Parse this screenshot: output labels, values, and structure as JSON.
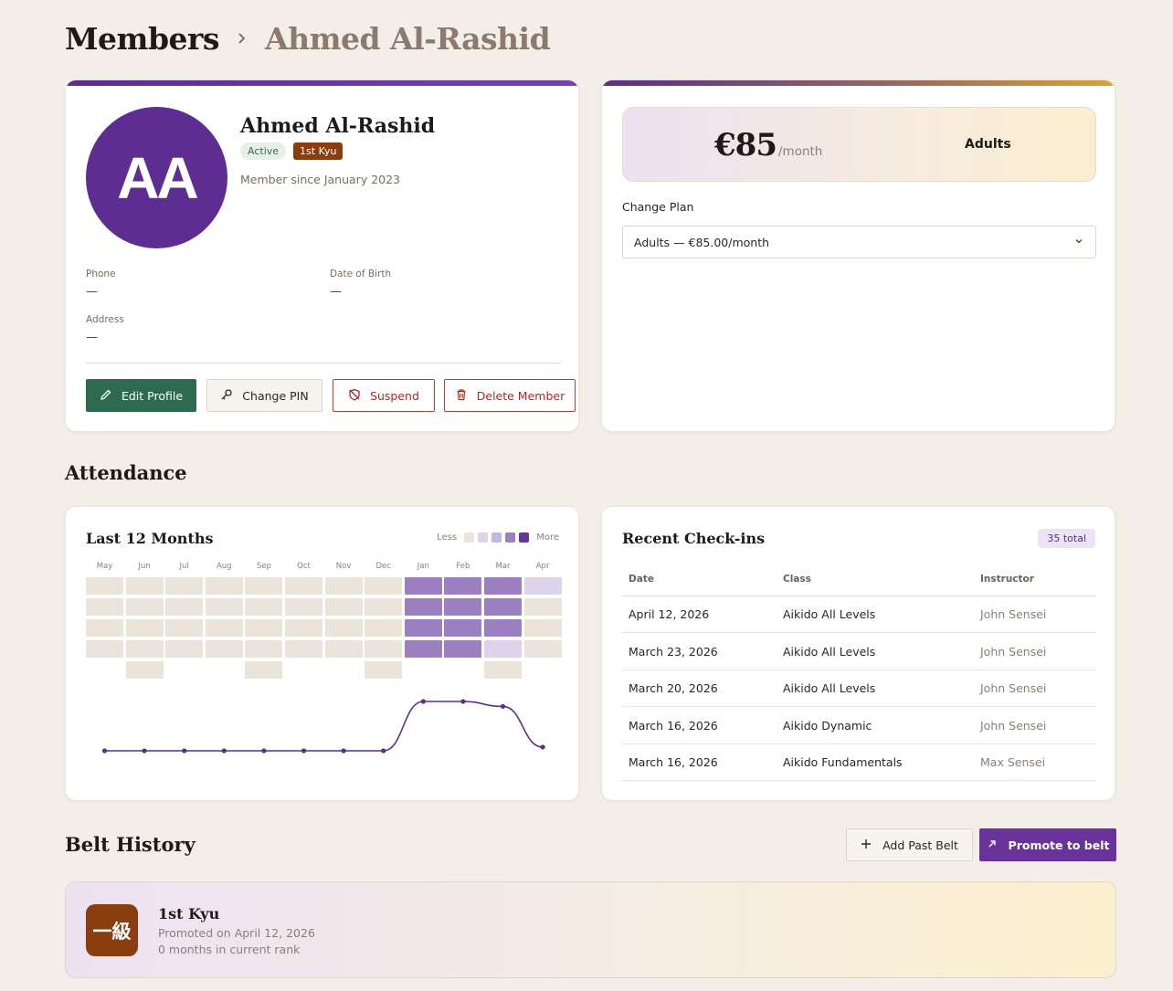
{
  "breadcrumb": {
    "root": "Members",
    "current": "Ahmed Al-Rashid"
  },
  "profile": {
    "initials": "AA",
    "name": "Ahmed Al-Rashid",
    "status": "Active",
    "rank": "1st Kyu",
    "member_since": "Member since January 2023",
    "phone_label": "Phone",
    "phone_value": "—",
    "dob_label": "Date of Birth",
    "dob_value": "—",
    "address_label": "Address",
    "address_value": "—",
    "buttons": {
      "edit": "Edit Profile",
      "pin": "Change PIN",
      "suspend": "Suspend",
      "delete": "Delete Member"
    }
  },
  "plan": {
    "price": "€85",
    "unit": "/month",
    "name": "Adults",
    "change_label": "Change Plan",
    "selected": "Adults — €85.00/month"
  },
  "attendance": {
    "section_title": "Attendance",
    "card_title": "Last 12 Months",
    "legend_less": "Less",
    "legend_more": "More",
    "legend_colors": [
      "#ebe4da",
      "#ddd4ec",
      "#c6b5dd",
      "#9b7fc1",
      "#6a3399"
    ],
    "months": [
      "May",
      "Jun",
      "Jul",
      "Aug",
      "Sep",
      "Oct",
      "Nov",
      "Dec",
      "Jan",
      "Feb",
      "Mar",
      "Apr"
    ],
    "weeks_per_month": [
      4,
      5,
      4,
      4,
      5,
      4,
      4,
      5,
      4,
      4,
      5,
      4
    ],
    "grid": [
      [
        0,
        0,
        0,
        0
      ],
      [
        0,
        0,
        0,
        0,
        0
      ],
      [
        0,
        0,
        0,
        0
      ],
      [
        0,
        0,
        0,
        0
      ],
      [
        0,
        0,
        0,
        0,
        0
      ],
      [
        0,
        0,
        0,
        0
      ],
      [
        0,
        0,
        0,
        0
      ],
      [
        0,
        0,
        0,
        0,
        0
      ],
      [
        3,
        3,
        3,
        3
      ],
      [
        3,
        3,
        3,
        3
      ],
      [
        3,
        3,
        3,
        1,
        0
      ],
      [
        1,
        0,
        0,
        0
      ]
    ],
    "trend": [
      0,
      0,
      0,
      0,
      0,
      0,
      0,
      0,
      4,
      4,
      3.6,
      0.3
    ]
  },
  "checkins": {
    "title": "Recent Check-ins",
    "total": "35 total",
    "headers": {
      "date": "Date",
      "class": "Class",
      "instructor": "Instructor"
    },
    "rows": [
      {
        "date": "April 12, 2026",
        "class": "Aikido All Levels",
        "instructor": "John Sensei"
      },
      {
        "date": "March 23, 2026",
        "class": "Aikido All Levels",
        "instructor": "John Sensei"
      },
      {
        "date": "March 20, 2026",
        "class": "Aikido All Levels",
        "instructor": "John Sensei"
      },
      {
        "date": "March 16, 2026",
        "class": "Aikido Dynamic",
        "instructor": "John Sensei"
      },
      {
        "date": "March 16, 2026",
        "class": "Aikido Fundamentals",
        "instructor": "Max Sensei"
      }
    ]
  },
  "belt": {
    "section_title": "Belt History",
    "add_label": "Add Past Belt",
    "promote_label": "Promote to belt",
    "kanji": "一級",
    "name": "1st Kyu",
    "promoted": "Promoted on April 12, 2026",
    "months": "0 months in current rank"
  }
}
